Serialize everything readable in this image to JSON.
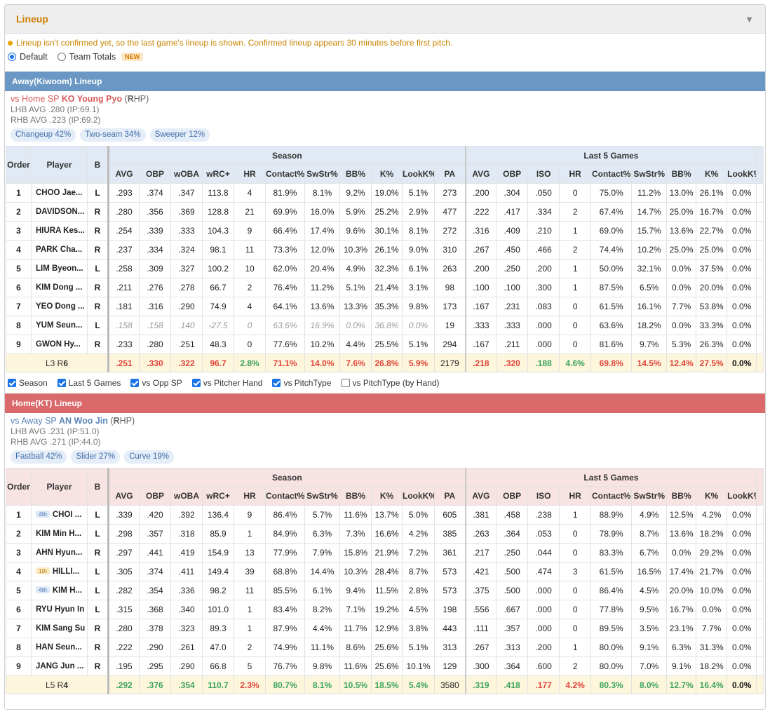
{
  "panel": {
    "title": "Lineup"
  },
  "notice": "Lineup isn't confirmed yet, so the last game's lineup is shown. Confirmed lineup appears 30 minutes before first pitch.",
  "modes": {
    "default_label": "Default",
    "totals_label": "Team Totals",
    "new_badge": "NEW",
    "selected": "Default"
  },
  "filters": [
    {
      "label": "Season",
      "checked": true
    },
    {
      "label": "Last 5 Games",
      "checked": true
    },
    {
      "label": "vs Opp SP",
      "checked": true
    },
    {
      "label": "vs Pitcher Hand",
      "checked": true
    },
    {
      "label": "vs PitchType",
      "checked": true
    },
    {
      "label": "vs PitchType (by Hand)",
      "checked": false
    }
  ],
  "columns": {
    "order": "Order",
    "player": "Player",
    "bat": "B",
    "season_group": "Season",
    "last5_group": "Last 5 Games",
    "season": [
      "AVG",
      "OBP",
      "wOBA",
      "wRC+",
      "HR",
      "Contact%",
      "SwStr%",
      "BB%",
      "K%",
      "LookK%",
      "PA"
    ],
    "last5": [
      "AVG",
      "OBP",
      "ISO",
      "HR",
      "Contact%",
      "SwStr%",
      "BB%",
      "K%",
      "LookK%"
    ]
  },
  "away": {
    "title": "Away(Kiwoom) Lineup",
    "sp_prefix": "vs Home SP",
    "sp_name": "KO Young Pyo",
    "sp_hand_open": "(",
    "sp_hand": "R",
    "sp_hand_close": "HP)",
    "lhb": "LHB AVG .280 (IP:69.1)",
    "rhb": "RHB AVG .223 (IP:69.2)",
    "pitches": [
      "Changeup 42%",
      "Two-seam 34%",
      "Sweeper 12%"
    ],
    "rows": [
      {
        "order": "1",
        "badge": "",
        "player": "CHOO Jae...",
        "bat": "L",
        "season": [
          ".293",
          ".374",
          ".347",
          "113.8",
          "4",
          "81.9%",
          "8.1%",
          "9.2%",
          "19.0%",
          "5.1%",
          "273"
        ],
        "last5": [
          ".200",
          ".304",
          ".050",
          "0",
          "75.0%",
          "11.2%",
          "13.0%",
          "26.1%",
          "0.0%"
        ]
      },
      {
        "order": "2",
        "badge": "",
        "player": "DAVIDSON...",
        "bat": "R",
        "season": [
          ".280",
          ".356",
          ".369",
          "128.8",
          "21",
          "69.9%",
          "16.0%",
          "5.9%",
          "25.2%",
          "2.9%",
          "477"
        ],
        "last5": [
          ".222",
          ".417",
          ".334",
          "2",
          "67.4%",
          "14.7%",
          "25.0%",
          "16.7%",
          "0.0%"
        ]
      },
      {
        "order": "3",
        "badge": "",
        "player": "HIURA Kes...",
        "bat": "R",
        "season": [
          ".254",
          ".339",
          ".333",
          "104.3",
          "9",
          "66.4%",
          "17.4%",
          "9.6%",
          "30.1%",
          "8.1%",
          "272"
        ],
        "last5": [
          ".316",
          ".409",
          ".210",
          "1",
          "69.0%",
          "15.7%",
          "13.6%",
          "22.7%",
          "0.0%"
        ]
      },
      {
        "order": "4",
        "badge": "",
        "player": "PARK Cha...",
        "bat": "R",
        "season": [
          ".237",
          ".334",
          ".324",
          "98.1",
          "11",
          "73.3%",
          "12.0%",
          "10.3%",
          "26.1%",
          "9.0%",
          "310"
        ],
        "last5": [
          ".267",
          ".450",
          ".466",
          "2",
          "74.4%",
          "10.2%",
          "25.0%",
          "25.0%",
          "0.0%"
        ]
      },
      {
        "order": "5",
        "badge": "",
        "player": "LIM Byeon...",
        "bat": "L",
        "season": [
          ".258",
          ".309",
          ".327",
          "100.2",
          "10",
          "62.0%",
          "20.4%",
          "4.9%",
          "32.3%",
          "6.1%",
          "263"
        ],
        "last5": [
          ".200",
          ".250",
          ".200",
          "1",
          "50.0%",
          "32.1%",
          "0.0%",
          "37.5%",
          "0.0%"
        ]
      },
      {
        "order": "6",
        "badge": "",
        "player": "KIM Dong ...",
        "bat": "R",
        "season": [
          ".211",
          ".276",
          ".278",
          "66.7",
          "2",
          "76.4%",
          "11.2%",
          "5.1%",
          "21.4%",
          "3.1%",
          "98"
        ],
        "last5": [
          ".100",
          ".100",
          ".300",
          "1",
          "87.5%",
          "6.5%",
          "0.0%",
          "20.0%",
          "0.0%"
        ]
      },
      {
        "order": "7",
        "badge": "",
        "player": "YEO Dong ...",
        "bat": "R",
        "season": [
          ".181",
          ".316",
          ".290",
          "74.9",
          "4",
          "64.1%",
          "13.6%",
          "13.3%",
          "35.3%",
          "9.8%",
          "173"
        ],
        "last5": [
          ".167",
          ".231",
          ".083",
          "0",
          "61.5%",
          "16.1%",
          "7.7%",
          "53.8%",
          "0.0%"
        ]
      },
      {
        "order": "8",
        "badge": "",
        "player": "YUM Seun...",
        "bat": "L",
        "dim": true,
        "season": [
          ".158",
          ".158",
          ".140",
          "-27.5",
          "0",
          "63.6%",
          "16.9%",
          "0.0%",
          "36.8%",
          "0.0%",
          "19"
        ],
        "last5": [
          ".333",
          ".333",
          ".000",
          "0",
          "63.6%",
          "18.2%",
          "0.0%",
          "33.3%",
          "0.0%"
        ]
      },
      {
        "order": "9",
        "badge": "",
        "player": "GWON Hy...",
        "bat": "R",
        "season": [
          ".233",
          ".280",
          ".251",
          "48.3",
          "0",
          "77.6%",
          "10.2%",
          "4.4%",
          "25.5%",
          "5.1%",
          "294"
        ],
        "last5": [
          ".167",
          ".211",
          ".000",
          "0",
          "81.6%",
          "9.7%",
          "5.3%",
          "26.3%",
          "0.0%"
        ]
      }
    ],
    "total": {
      "label_prefix": "L3 R",
      "label_bold": "6",
      "season": [
        ".251",
        ".330",
        ".322",
        "96.7",
        "2.8%",
        "71.1%",
        "14.0%",
        "7.6%",
        "26.8%",
        "5.9%",
        "2179"
      ],
      "season_colors": [
        "red",
        "red",
        "red",
        "red",
        "green",
        "red",
        "red",
        "red",
        "red",
        "red",
        "plain"
      ],
      "last5": [
        ".218",
        ".320",
        ".188",
        "4.6%",
        "69.8%",
        "14.5%",
        "12.4%",
        "27.5%",
        "0.0%"
      ],
      "last5_colors": [
        "red",
        "red",
        "green",
        "green",
        "red",
        "red",
        "red",
        "red",
        "black"
      ]
    }
  },
  "home": {
    "title": "Home(KT) Lineup",
    "sp_prefix": "vs Away SP",
    "sp_name": "AN Woo Jin",
    "sp_hand_open": "(",
    "sp_hand": "R",
    "sp_hand_close": "HP)",
    "lhb": "LHB AVG .231 (IP:51.0)",
    "rhb": "RHB AVG .271 (IP:44.0)",
    "pitches": [
      "Fastball 42%",
      "Slider 27%",
      "Curve 19%"
    ],
    "rows": [
      {
        "order": "1",
        "badge": "4th",
        "player": "CHOI ...",
        "bat": "L",
        "season": [
          ".339",
          ".420",
          ".392",
          "136.4",
          "9",
          "86.4%",
          "5.7%",
          "11.6%",
          "13.7%",
          "5.0%",
          "605"
        ],
        "last5": [
          ".381",
          ".458",
          ".238",
          "1",
          "88.9%",
          "4.9%",
          "12.5%",
          "4.2%",
          "0.0%"
        ]
      },
      {
        "order": "2",
        "badge": "",
        "player": "KIM Min H...",
        "bat": "L",
        "season": [
          ".298",
          ".357",
          ".318",
          "85.9",
          "1",
          "84.9%",
          "6.3%",
          "7.3%",
          "16.6%",
          "4.2%",
          "385"
        ],
        "last5": [
          ".263",
          ".364",
          ".053",
          "0",
          "78.9%",
          "8.7%",
          "13.6%",
          "18.2%",
          "0.0%"
        ]
      },
      {
        "order": "3",
        "badge": "",
        "player": "AHN Hyun...",
        "bat": "R",
        "season": [
          ".297",
          ".441",
          ".419",
          "154.9",
          "13",
          "77.9%",
          "7.9%",
          "15.8%",
          "21.9%",
          "7.2%",
          "361"
        ],
        "last5": [
          ".217",
          ".250",
          ".044",
          "0",
          "83.3%",
          "6.7%",
          "0.0%",
          "29.2%",
          "0.0%"
        ]
      },
      {
        "order": "4",
        "badge": "1th",
        "player": "HILLI...",
        "bat": "L",
        "season": [
          ".305",
          ".374",
          ".411",
          "149.4",
          "39",
          "68.8%",
          "14.4%",
          "10.3%",
          "28.4%",
          "8.7%",
          "573"
        ],
        "last5": [
          ".421",
          ".500",
          ".474",
          "3",
          "61.5%",
          "16.5%",
          "17.4%",
          "21.7%",
          "0.0%"
        ]
      },
      {
        "order": "5",
        "badge": "4th",
        "player": "KIM H...",
        "bat": "L",
        "season": [
          ".282",
          ".354",
          ".336",
          "98.2",
          "11",
          "85.5%",
          "6.1%",
          "9.4%",
          "11.5%",
          "2.8%",
          "573"
        ],
        "last5": [
          ".375",
          ".500",
          ".000",
          "0",
          "86.4%",
          "4.5%",
          "20.0%",
          "10.0%",
          "0.0%"
        ]
      },
      {
        "order": "6",
        "badge": "",
        "player": "RYU Hyun In",
        "bat": "L",
        "season": [
          ".315",
          ".368",
          ".340",
          "101.0",
          "1",
          "83.4%",
          "8.2%",
          "7.1%",
          "19.2%",
          "4.5%",
          "198"
        ],
        "last5": [
          ".556",
          ".667",
          ".000",
          "0",
          "77.8%",
          "9.5%",
          "16.7%",
          "0.0%",
          "0.0%"
        ]
      },
      {
        "order": "7",
        "badge": "",
        "player": "KIM Sang Su",
        "bat": "R",
        "season": [
          ".280",
          ".378",
          ".323",
          "89.3",
          "1",
          "87.9%",
          "4.4%",
          "11.7%",
          "12.9%",
          "3.8%",
          "443"
        ],
        "last5": [
          ".111",
          ".357",
          ".000",
          "0",
          "89.5%",
          "3.5%",
          "23.1%",
          "7.7%",
          "0.0%"
        ]
      },
      {
        "order": "8",
        "badge": "",
        "player": "HAN Seun...",
        "bat": "R",
        "season": [
          ".222",
          ".290",
          ".261",
          "47.0",
          "2",
          "74.9%",
          "11.1%",
          "8.6%",
          "25.6%",
          "5.1%",
          "313"
        ],
        "last5": [
          ".267",
          ".313",
          ".200",
          "1",
          "80.0%",
          "9.1%",
          "6.3%",
          "31.3%",
          "0.0%"
        ]
      },
      {
        "order": "9",
        "badge": "",
        "player": "JANG Jun ...",
        "bat": "R",
        "season": [
          ".195",
          ".295",
          ".290",
          "66.8",
          "5",
          "76.7%",
          "9.8%",
          "11.6%",
          "25.6%",
          "10.1%",
          "129"
        ],
        "last5": [
          ".300",
          ".364",
          ".600",
          "2",
          "80.0%",
          "7.0%",
          "9.1%",
          "18.2%",
          "0.0%"
        ]
      }
    ],
    "total": {
      "label_prefix": "L5 R",
      "label_bold": "4",
      "season": [
        ".292",
        ".376",
        ".354",
        "110.7",
        "2.3%",
        "80.7%",
        "8.1%",
        "10.5%",
        "18.5%",
        "5.4%",
        "3580"
      ],
      "season_colors": [
        "green",
        "green",
        "green",
        "green",
        "red",
        "green",
        "green",
        "green",
        "green",
        "green",
        "plain"
      ],
      "last5": [
        ".319",
        ".418",
        ".177",
        "4.2%",
        "80.3%",
        "8.0%",
        "12.7%",
        "16.4%",
        "0.0%"
      ],
      "last5_colors": [
        "green",
        "green",
        "red",
        "red",
        "green",
        "green",
        "green",
        "green",
        "black"
      ]
    }
  }
}
